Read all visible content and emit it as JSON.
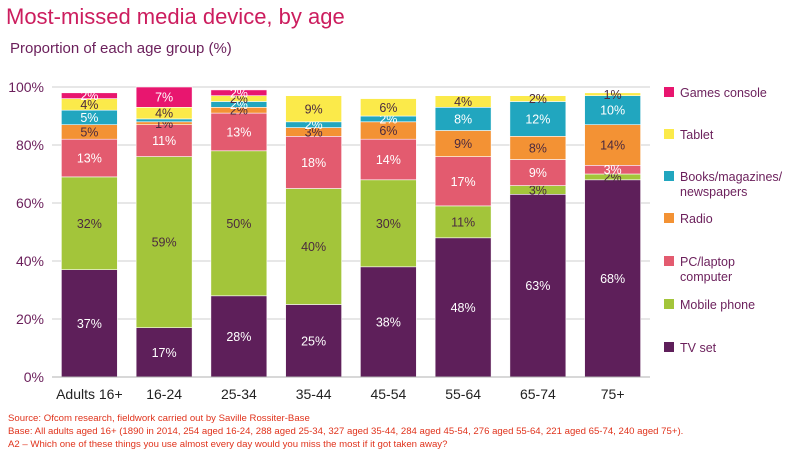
{
  "title": "Most-missed media device, by age",
  "subtitle": "Proportion of each age group (%)",
  "chart_data": {
    "type": "bar",
    "stacked": true,
    "categories": [
      "Adults 16+",
      "16-24",
      "25-34",
      "35-44",
      "45-54",
      "55-64",
      "65-74",
      "75+"
    ],
    "series": [
      {
        "name": "TV set",
        "color": "#5e1f5a",
        "values": [
          37,
          17,
          28,
          25,
          38,
          48,
          63,
          68
        ],
        "labels": [
          "37%",
          "17%",
          "28%",
          "25%",
          "38%",
          "48%",
          "63%",
          "68%"
        ]
      },
      {
        "name": "Mobile phone",
        "color": "#a3c53a",
        "values": [
          32,
          59,
          50,
          40,
          30,
          11,
          3,
          2
        ],
        "labels": [
          "32%",
          "59%",
          "50%",
          "40%",
          "30%",
          "11%",
          "3%",
          "2%"
        ]
      },
      {
        "name": "PC/laptop computer",
        "color": "#e35b6f",
        "values": [
          13,
          11,
          13,
          18,
          14,
          17,
          9,
          3
        ],
        "labels": [
          "13%",
          "11%",
          "13%",
          "18%",
          "14%",
          "17%",
          "9%",
          "3%"
        ]
      },
      {
        "name": "Radio",
        "color": "#f39234",
        "values": [
          5,
          1,
          2,
          3,
          6,
          9,
          8,
          14
        ],
        "labels": [
          "5%",
          "1%",
          "2%",
          "3%",
          "6%",
          "9%",
          "8%",
          "14%"
        ]
      },
      {
        "name": "Books/magazines/ newspapers",
        "color": "#21a6bf",
        "values": [
          5,
          1,
          2,
          2,
          2,
          8,
          12,
          10
        ],
        "labels": [
          "5%",
          "",
          "2%",
          "2%",
          "2%",
          "8%",
          "12%",
          "10%"
        ]
      },
      {
        "name": "Tablet",
        "color": "#fbea4a",
        "values": [
          4,
          4,
          2,
          9,
          6,
          4,
          2,
          1
        ],
        "labels": [
          "4%",
          "4%",
          "2%",
          "9%",
          "6%",
          "4%",
          "2%",
          "1%"
        ]
      },
      {
        "name": "Games console",
        "color": "#e8166f",
        "values": [
          2,
          7,
          2,
          0,
          0,
          0,
          0,
          0
        ],
        "labels": [
          "2%",
          "7%",
          "2%",
          "",
          "",
          "",
          "",
          ""
        ]
      }
    ],
    "ylim": [
      0,
      100
    ],
    "yticks": [
      "0%",
      "20%",
      "40%",
      "60%",
      "80%",
      "100%"
    ],
    "legend_position": "right",
    "grid": true
  },
  "footnotes": {
    "source": "Source: Ofcom research, fieldwork carried out by Saville Rossiter-Base",
    "base": "Base: All adults aged 16+ (1890 in 2014, 254 aged 16-24, 288 aged 25-34, 327 aged 35-44, 284 aged 45-54, 276 aged 55-64, 221 aged 65-74, 240 aged 75+).",
    "question": "A2 – Which one of these things you use almost every day would you miss the most if it got taken away?"
  }
}
